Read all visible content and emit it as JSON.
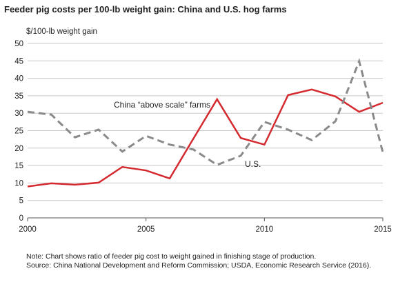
{
  "chart_data": {
    "type": "line",
    "title": "Feeder pig costs per 100-lb weight gain: China and U.S. hog farms",
    "ylabel": "$/100-lb weight gain",
    "xlabel": "",
    "xlim": [
      2000,
      2015
    ],
    "ylim": [
      0,
      50
    ],
    "x_ticks": [
      "2000",
      "2005",
      "2010",
      "2015"
    ],
    "y_ticks": [
      "0",
      "5",
      "10",
      "15",
      "20",
      "25",
      "30",
      "35",
      "40",
      "45",
      "50"
    ],
    "grid": "horizontal",
    "x": [
      2000,
      2001,
      2002,
      2003,
      2004,
      2005,
      2006,
      2007,
      2008,
      2009,
      2010,
      2011,
      2012,
      2013,
      2014,
      2015
    ],
    "series": [
      {
        "name": "China “above scale” farms",
        "color": "#d42a2f",
        "style": "solid",
        "values": [
          9.0,
          9.9,
          9.5,
          10.1,
          14.6,
          13.6,
          11.3,
          22.7,
          34.0,
          22.9,
          21.0,
          35.2,
          36.8,
          34.8,
          30.4,
          33.0
        ]
      },
      {
        "name": "U.S.",
        "color": "#8a8a8a",
        "style": "dashed",
        "values": [
          30.4,
          29.6,
          23.1,
          25.3,
          19.0,
          23.5,
          21.0,
          19.6,
          15.2,
          17.8,
          27.5,
          25.3,
          22.3,
          27.7,
          44.9,
          18.8
        ]
      }
    ],
    "notes": [
      "Note: Chart shows ratio of feeder pig cost to weight gained in finishing stage of production.",
      "Source: China National Development and Reform Commission; USDA, Economic Research Service (2016)."
    ]
  }
}
